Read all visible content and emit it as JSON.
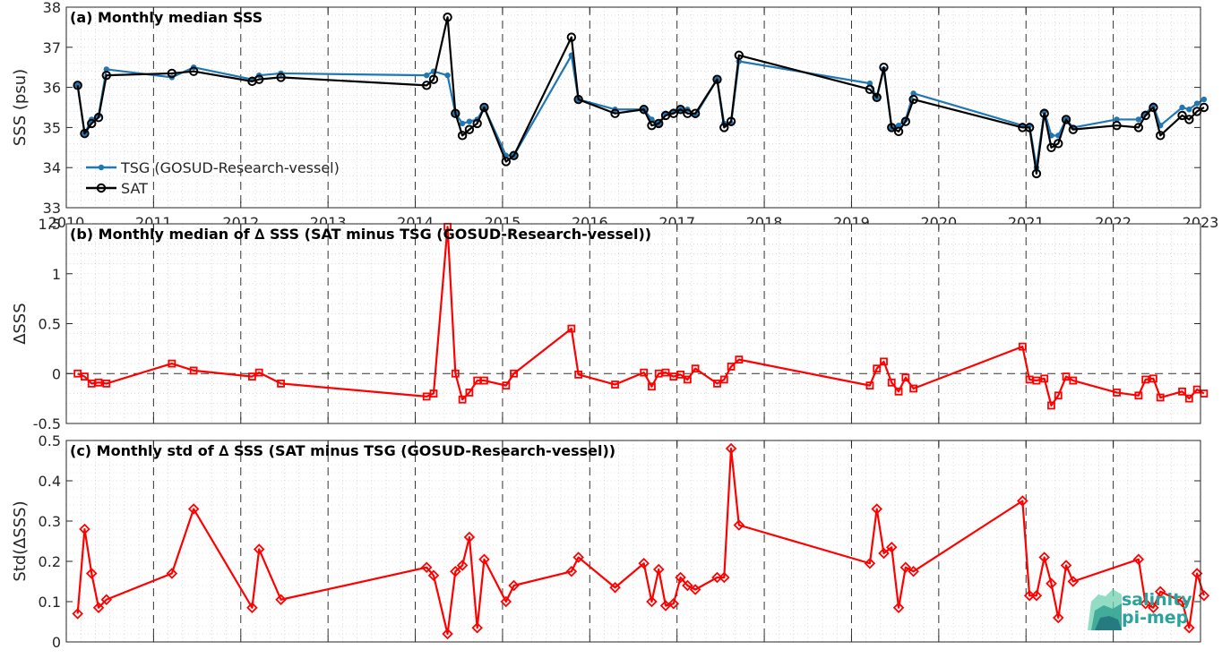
{
  "chart_data": [
    {
      "type": "line",
      "title": "(a) Monthly median SSS",
      "ylabel": "SSS (psu)",
      "ylim": [
        33,
        38
      ],
      "yticks": [
        "33",
        "34",
        "35",
        "36",
        "37",
        "38"
      ],
      "xlim": [
        2010,
        2023
      ],
      "xticks": [
        "2010",
        "2011",
        "2012",
        "2013",
        "2014",
        "2015",
        "2016",
        "2017",
        "2018",
        "2019",
        "2020",
        "2021",
        "2022",
        "2023"
      ],
      "grid": "minor dotted, dashed at year lines",
      "legend_position": "bottom-left",
      "series": [
        {
          "name": "TSG (GOSUD-Research-vessel)",
          "color": "#1f77b4",
          "marker": "dot",
          "x": [
            2010.13,
            2010.21,
            2010.29,
            2010.37,
            2010.46,
            2011.21,
            2011.46,
            2012.13,
            2012.21,
            2012.46,
            2014.13,
            2014.21,
            2014.37,
            2014.46,
            2014.54,
            2014.62,
            2014.71,
            2014.79,
            2015.04,
            2015.13,
            2015.79,
            2015.87,
            2016.29,
            2016.62,
            2016.71,
            2016.79,
            2016.87,
            2016.96,
            2017.04,
            2017.12,
            2017.21,
            2017.46,
            2017.54,
            2017.62,
            2017.71,
            2019.21,
            2019.29,
            2019.37,
            2019.46,
            2019.54,
            2019.62,
            2019.71,
            2020.96,
            2021.04,
            2021.12,
            2021.21,
            2021.29,
            2021.37,
            2021.46,
            2021.54,
            2022.04,
            2022.29,
            2022.37,
            2022.46,
            2022.54,
            2022.79,
            2022.87,
            2022.96,
            2023.04
          ],
          "y": [
            36.05,
            34.85,
            35.2,
            35.3,
            36.45,
            36.25,
            36.5,
            36.2,
            36.3,
            36.35,
            36.3,
            36.4,
            36.3,
            35.35,
            35.1,
            35.15,
            35.2,
            35.5,
            34.3,
            34.3,
            36.8,
            35.7,
            35.45,
            35.45,
            35.2,
            35.1,
            35.35,
            35.4,
            35.45,
            35.45,
            35.3,
            36.2,
            35.1,
            35.1,
            36.65,
            36.1,
            35.75,
            36.45,
            35.0,
            35.05,
            35.2,
            35.85,
            35.05,
            35.05,
            34.0,
            35.4,
            34.8,
            34.8,
            35.2,
            35.0,
            35.2,
            35.2,
            35.35,
            35.55,
            35.05,
            35.5,
            35.45,
            35.6,
            35.7
          ]
        },
        {
          "name": "SAT",
          "color": "#000000",
          "marker": "circle",
          "x": [
            2010.13,
            2010.21,
            2010.29,
            2010.37,
            2010.46,
            2011.21,
            2011.46,
            2012.13,
            2012.21,
            2012.46,
            2014.13,
            2014.21,
            2014.37,
            2014.46,
            2014.54,
            2014.62,
            2014.71,
            2014.79,
            2015.04,
            2015.13,
            2015.79,
            2015.87,
            2016.29,
            2016.62,
            2016.71,
            2016.79,
            2016.87,
            2016.96,
            2017.04,
            2017.12,
            2017.21,
            2017.46,
            2017.54,
            2017.62,
            2017.71,
            2019.21,
            2019.29,
            2019.37,
            2019.46,
            2019.54,
            2019.62,
            2019.71,
            2020.96,
            2021.04,
            2021.12,
            2021.21,
            2021.29,
            2021.37,
            2021.46,
            2021.54,
            2022.04,
            2022.29,
            2022.37,
            2022.46,
            2022.54,
            2022.79,
            2022.87,
            2022.96,
            2023.04
          ],
          "y": [
            36.05,
            34.85,
            35.1,
            35.25,
            36.3,
            36.35,
            36.4,
            36.15,
            36.2,
            36.25,
            36.05,
            36.2,
            37.75,
            35.35,
            34.8,
            34.95,
            35.1,
            35.5,
            34.15,
            34.3,
            37.25,
            35.7,
            35.35,
            35.45,
            35.05,
            35.1,
            35.3,
            35.35,
            35.45,
            35.35,
            35.35,
            36.2,
            35.0,
            35.15,
            36.8,
            35.95,
            35.75,
            36.5,
            35.0,
            34.9,
            35.15,
            35.7,
            35.0,
            35.0,
            33.85,
            35.35,
            34.5,
            34.6,
            35.2,
            34.95,
            35.05,
            35.0,
            35.3,
            35.5,
            34.8,
            35.3,
            35.2,
            35.4,
            35.5
          ]
        }
      ]
    },
    {
      "type": "line",
      "title": "(b) Monthly median of ∆ SSS (SAT minus TSG (GOSUD-Research-vessel))",
      "ylabel": "∆SSS",
      "ylim": [
        -0.5,
        1.5
      ],
      "yticks": [
        "-0.5",
        "0",
        "0.5",
        "1",
        "1.5"
      ],
      "xlim": [
        2010,
        2023
      ],
      "zero_line": "dashed",
      "series": [
        {
          "color": "#ff0000",
          "marker": "square",
          "x": [
            2010.13,
            2010.21,
            2010.29,
            2010.37,
            2010.46,
            2011.21,
            2011.46,
            2012.13,
            2012.21,
            2012.46,
            2014.13,
            2014.21,
            2014.37,
            2014.46,
            2014.54,
            2014.62,
            2014.71,
            2014.79,
            2015.04,
            2015.13,
            2015.79,
            2015.87,
            2016.29,
            2016.62,
            2016.71,
            2016.79,
            2016.87,
            2016.96,
            2017.04,
            2017.12,
            2017.21,
            2017.46,
            2017.54,
            2017.62,
            2017.71,
            2019.21,
            2019.29,
            2019.37,
            2019.46,
            2019.54,
            2019.62,
            2019.71,
            2020.96,
            2021.04,
            2021.12,
            2021.21,
            2021.29,
            2021.37,
            2021.46,
            2021.54,
            2022.04,
            2022.29,
            2022.37,
            2022.46,
            2022.54,
            2022.79,
            2022.87,
            2022.96,
            2023.04
          ],
          "y": [
            0.0,
            -0.03,
            -0.1,
            -0.09,
            -0.1,
            0.1,
            0.03,
            -0.03,
            0.01,
            -0.1,
            -0.23,
            -0.2,
            1.47,
            0.0,
            -0.26,
            -0.19,
            -0.07,
            -0.07,
            -0.12,
            0.0,
            0.45,
            -0.01,
            -0.11,
            0.01,
            -0.13,
            0.0,
            0.01,
            -0.03,
            -0.01,
            -0.06,
            0.05,
            -0.1,
            -0.06,
            0.07,
            0.14,
            -0.12,
            0.05,
            0.12,
            -0.09,
            -0.18,
            -0.04,
            -0.15,
            0.27,
            -0.06,
            -0.07,
            -0.05,
            -0.32,
            -0.22,
            -0.03,
            -0.07,
            -0.19,
            -0.22,
            -0.06,
            -0.05,
            -0.24,
            -0.18,
            -0.25,
            -0.16,
            -0.2
          ]
        }
      ]
    },
    {
      "type": "line",
      "title": "(c) Monthly std of ∆ SSS (SAT minus TSG (GOSUD-Research-vessel))",
      "ylabel": "Std(∆SSS)",
      "ylim": [
        0,
        0.5
      ],
      "yticks": [
        "0",
        "0.1",
        "0.2",
        "0.3",
        "0.4",
        "0.5"
      ],
      "xlim": [
        2010,
        2023
      ],
      "series": [
        {
          "color": "#ff0000",
          "marker": "diamond",
          "x": [
            2010.13,
            2010.21,
            2010.29,
            2010.37,
            2010.46,
            2011.21,
            2011.46,
            2012.13,
            2012.21,
            2012.46,
            2014.13,
            2014.21,
            2014.37,
            2014.46,
            2014.54,
            2014.62,
            2014.71,
            2014.79,
            2015.04,
            2015.13,
            2015.79,
            2015.87,
            2016.29,
            2016.62,
            2016.71,
            2016.79,
            2016.87,
            2016.96,
            2017.04,
            2017.12,
            2017.21,
            2017.46,
            2017.54,
            2017.62,
            2017.71,
            2019.21,
            2019.29,
            2019.37,
            2019.46,
            2019.54,
            2019.62,
            2019.71,
            2020.96,
            2021.04,
            2021.12,
            2021.21,
            2021.29,
            2021.37,
            2021.46,
            2021.54,
            2022.29,
            2022.37,
            2022.46,
            2022.54,
            2022.79,
            2022.87,
            2022.96,
            2023.04
          ],
          "y": [
            0.07,
            0.28,
            0.17,
            0.085,
            0.105,
            0.17,
            0.33,
            0.085,
            0.23,
            0.105,
            0.185,
            0.165,
            0.02,
            0.175,
            0.19,
            0.26,
            0.035,
            0.205,
            0.1,
            0.14,
            0.175,
            0.21,
            0.135,
            0.195,
            0.1,
            0.18,
            0.09,
            0.095,
            0.16,
            0.14,
            0.13,
            0.16,
            0.16,
            0.48,
            0.29,
            0.195,
            0.33,
            0.22,
            0.235,
            0.085,
            0.185,
            0.175,
            0.35,
            0.115,
            0.115,
            0.21,
            0.145,
            0.06,
            0.19,
            0.15,
            0.205,
            0.095,
            0.085,
            0.125,
            0.1,
            0.035,
            0.17,
            0.115
          ]
        }
      ]
    }
  ],
  "logo": {
    "line1": "salinity",
    "line2": "pi-mep",
    "color": "#2aa39a"
  }
}
